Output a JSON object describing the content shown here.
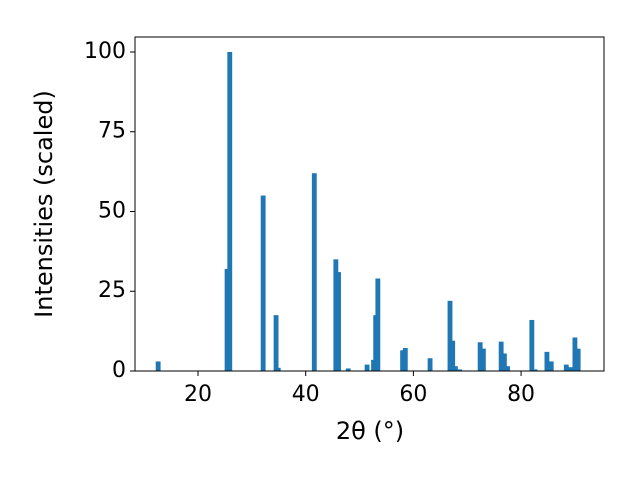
{
  "chart_data": {
    "type": "bar",
    "xlabel": "2θ (°)",
    "ylabel": "Intensities (scaled)",
    "color": "#1f77b4",
    "x": [
      12.6,
      25.4,
      25.9,
      32.1,
      34.5,
      34.9,
      41.6,
      45.6,
      46.1,
      47.9,
      51.4,
      52.6,
      53.0,
      53.4,
      58.0,
      58.5,
      63.1,
      66.8,
      67.3,
      67.8,
      68.6,
      72.4,
      73.0,
      76.3,
      76.9,
      77.5,
      82.0,
      82.6,
      84.8,
      85.6,
      88.4,
      89.2,
      90.0,
      90.6
    ],
    "values": [
      3,
      32,
      100,
      55,
      17.5,
      1,
      62,
      35,
      31,
      0.8,
      2,
      3.5,
      17.5,
      29,
      6.5,
      7.2,
      4,
      22,
      9.5,
      1.5,
      0.5,
      9,
      7,
      9.2,
      5.5,
      1.5,
      16,
      0.5,
      6,
      3,
      2,
      1.2,
      10.5,
      7
    ],
    "xlim": [
      8.3,
      95.4
    ],
    "ylim": [
      0,
      104.7
    ],
    "xticks": [
      20,
      40,
      60,
      80
    ],
    "yticks": [
      0,
      25,
      50,
      75,
      100
    ]
  }
}
